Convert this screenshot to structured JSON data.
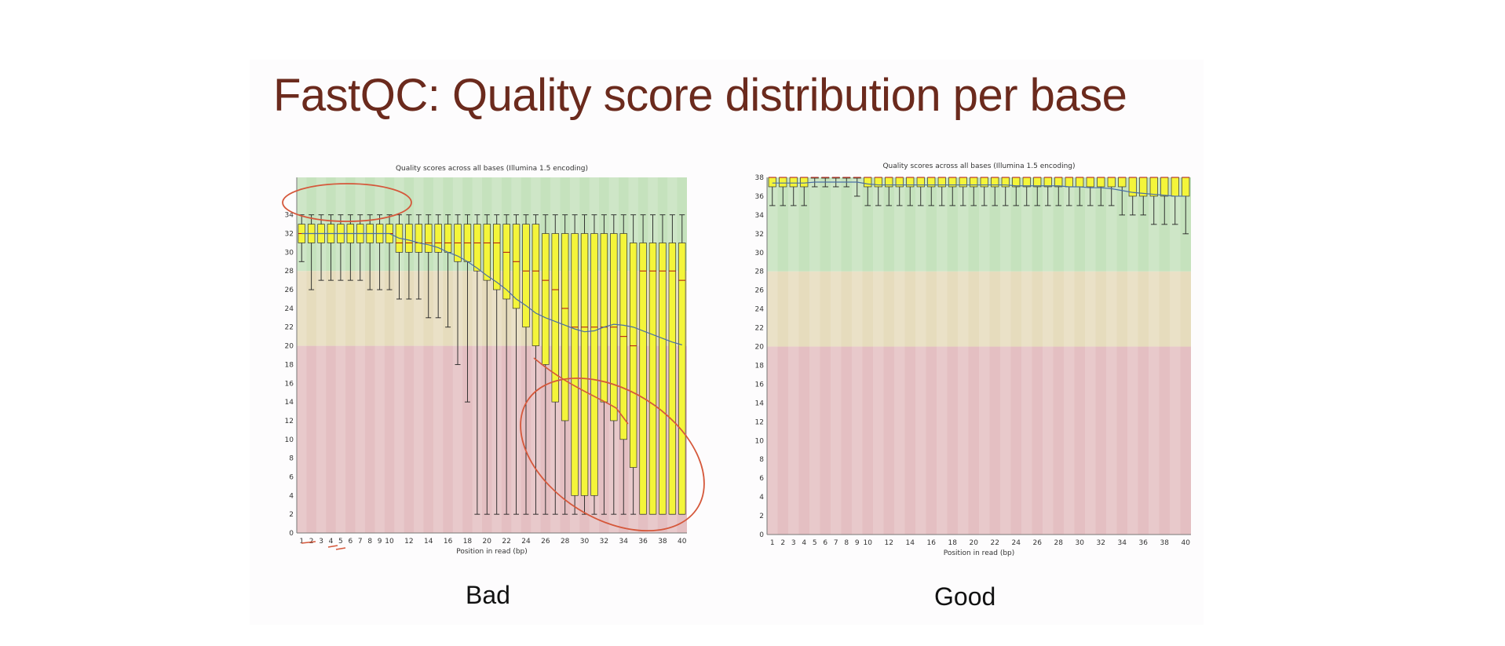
{
  "slide": {
    "title": "FastQC: Quality score distribution per base"
  },
  "chart_data": [
    {
      "type": "box",
      "caption": "Bad",
      "title": "Quality scores across all bases (Illumina 1.5 encoding)",
      "xlabel": "Position in read (bp)",
      "ylabel": "",
      "ylim": [
        0,
        38
      ],
      "yticks": [
        0,
        2,
        4,
        6,
        8,
        10,
        12,
        14,
        16,
        18,
        20,
        22,
        24,
        26,
        28,
        30,
        32,
        34
      ],
      "x": [
        1,
        2,
        3,
        4,
        5,
        6,
        7,
        8,
        9,
        10,
        12,
        14,
        16,
        18,
        20,
        22,
        24,
        26,
        28,
        30,
        32,
        34,
        36,
        38,
        40
      ],
      "x_slots": [
        1,
        2,
        3,
        4,
        5,
        6,
        7,
        8,
        9,
        10,
        11,
        12,
        13,
        14,
        15,
        16,
        17,
        18,
        19,
        20,
        21,
        22,
        23,
        24,
        25,
        26,
        27,
        28,
        29,
        30,
        31,
        32,
        33,
        34,
        35,
        36,
        37,
        38,
        39,
        40
      ],
      "box_q1": [
        31,
        31,
        31,
        31,
        31,
        31,
        31,
        31,
        31,
        31,
        30,
        30,
        30,
        30,
        30,
        30,
        29,
        29,
        28,
        27,
        26,
        25,
        24,
        22,
        20,
        18,
        14,
        12,
        4,
        4,
        4,
        14,
        12,
        10,
        7,
        2,
        2,
        2,
        2,
        2
      ],
      "box_q3": [
        33,
        33,
        33,
        33,
        33,
        33,
        33,
        33,
        33,
        33,
        33,
        33,
        33,
        33,
        33,
        33,
        33,
        33,
        33,
        33,
        33,
        33,
        33,
        33,
        33,
        32,
        32,
        32,
        32,
        32,
        32,
        32,
        32,
        32,
        31,
        31,
        31,
        31,
        31,
        31
      ],
      "whisker_lo": [
        29,
        26,
        27,
        27,
        27,
        27,
        27,
        26,
        26,
        26,
        25,
        25,
        25,
        23,
        23,
        22,
        18,
        14,
        2,
        2,
        2,
        2,
        2,
        2,
        2,
        2,
        2,
        2,
        2,
        2,
        2,
        2,
        2,
        2,
        2,
        2,
        2,
        2,
        2,
        2
      ],
      "whisker_hi": [
        34,
        34,
        34,
        34,
        34,
        34,
        34,
        34,
        34,
        34,
        34,
        34,
        34,
        34,
        34,
        34,
        34,
        34,
        34,
        34,
        34,
        34,
        34,
        34,
        34,
        34,
        34,
        34,
        34,
        34,
        34,
        34,
        34,
        34,
        34,
        34,
        34,
        34,
        34,
        34
      ],
      "median": [
        32,
        32,
        32,
        32,
        32,
        32,
        32,
        32,
        32,
        32,
        31,
        31,
        31,
        31,
        31,
        31,
        31,
        31,
        31,
        31,
        31,
        30,
        29,
        28,
        28,
        27,
        26,
        24,
        22,
        22,
        22,
        22,
        22,
        21,
        20,
        28,
        28,
        28,
        28,
        27
      ],
      "mean": [
        32,
        32,
        32,
        32,
        32,
        32,
        32,
        32,
        32,
        32,
        31.5,
        31.3,
        31,
        30.8,
        30.5,
        30,
        29.6,
        29,
        28.3,
        27.5,
        26.8,
        26,
        25,
        24.3,
        23.5,
        23,
        22.6,
        22.2,
        21.8,
        21.5,
        21.6,
        22,
        22.3,
        22.2,
        22,
        21.6,
        21.2,
        20.8,
        20.4,
        20.1
      ],
      "zones": [
        {
          "from": 0,
          "to": 20,
          "color": "#e4bfc2"
        },
        {
          "from": 20,
          "to": 28,
          "color": "#e6dcbd"
        },
        {
          "from": 28,
          "to": 38,
          "color": "#c5e2bd"
        }
      ],
      "colors": {
        "box": "#f4f53a",
        "mean_line": "#4a6fa5",
        "annotation": "#d5583b"
      }
    },
    {
      "type": "box",
      "caption": "Good",
      "title": "Quality scores across all bases (Illumina 1.5 encoding)",
      "xlabel": "Position in read (bp)",
      "ylabel": "",
      "ylim": [
        0,
        38
      ],
      "yticks": [
        0,
        2,
        4,
        6,
        8,
        10,
        12,
        14,
        16,
        18,
        20,
        22,
        24,
        26,
        28,
        30,
        32,
        34,
        36,
        38
      ],
      "x": [
        1,
        2,
        3,
        4,
        5,
        6,
        7,
        8,
        9,
        10,
        12,
        14,
        16,
        18,
        20,
        22,
        24,
        26,
        28,
        30,
        32,
        34,
        36,
        38,
        40
      ],
      "x_slots": [
        1,
        2,
        3,
        4,
        5,
        6,
        7,
        8,
        9,
        10,
        11,
        12,
        13,
        14,
        15,
        16,
        17,
        18,
        19,
        20,
        21,
        22,
        23,
        24,
        25,
        26,
        27,
        28,
        29,
        30,
        31,
        32,
        33,
        34,
        35,
        36,
        37,
        38,
        39,
        40
      ],
      "box_q1": [
        37,
        37,
        37,
        37,
        38,
        38,
        38,
        38,
        38,
        37,
        37,
        37,
        37,
        37,
        37,
        37,
        37,
        37,
        37,
        37,
        37,
        37,
        37,
        37,
        37,
        37,
        37,
        37,
        37,
        37,
        37,
        37,
        37,
        37,
        36,
        36,
        36,
        36,
        36,
        36
      ],
      "box_q3": [
        38,
        38,
        38,
        38,
        38,
        38,
        38,
        38,
        38,
        38,
        38,
        38,
        38,
        38,
        38,
        38,
        38,
        38,
        38,
        38,
        38,
        38,
        38,
        38,
        38,
        38,
        38,
        38,
        38,
        38,
        38,
        38,
        38,
        38,
        38,
        38,
        38,
        38,
        38,
        38
      ],
      "whisker_lo": [
        35,
        35,
        35,
        35,
        37,
        37,
        37,
        37,
        36,
        35,
        35,
        35,
        35,
        35,
        35,
        35,
        35,
        35,
        35,
        35,
        35,
        35,
        35,
        35,
        35,
        35,
        35,
        35,
        35,
        35,
        35,
        35,
        35,
        34,
        34,
        34,
        33,
        33,
        33,
        32
      ],
      "whisker_hi": [
        38,
        38,
        38,
        38,
        38,
        38,
        38,
        38,
        38,
        38,
        38,
        38,
        38,
        38,
        38,
        38,
        38,
        38,
        38,
        38,
        38,
        38,
        38,
        38,
        38,
        38,
        38,
        38,
        38,
        38,
        38,
        38,
        38,
        38,
        38,
        38,
        38,
        38,
        38,
        38
      ],
      "median": [
        38,
        38,
        38,
        38,
        38,
        38,
        38,
        38,
        38,
        38,
        38,
        38,
        38,
        38,
        38,
        38,
        38,
        38,
        38,
        38,
        38,
        38,
        38,
        38,
        38,
        38,
        38,
        38,
        38,
        38,
        38,
        38,
        38,
        38,
        38,
        38,
        38,
        38,
        38,
        38
      ],
      "mean": [
        37.4,
        37.4,
        37.4,
        37.4,
        37.5,
        37.5,
        37.5,
        37.5,
        37.5,
        37.3,
        37.2,
        37.2,
        37.2,
        37.2,
        37.2,
        37.2,
        37.2,
        37.2,
        37.2,
        37.2,
        37.2,
        37.2,
        37.2,
        37.1,
        37.1,
        37.1,
        37.1,
        37.1,
        37.0,
        37.0,
        36.9,
        36.9,
        36.8,
        36.6,
        36.4,
        36.3,
        36.2,
        36.1,
        36.0,
        36.0
      ],
      "zones": [
        {
          "from": 0,
          "to": 20,
          "color": "#e4bfc2"
        },
        {
          "from": 20,
          "to": 28,
          "color": "#e6dcbd"
        },
        {
          "from": 28,
          "to": 38,
          "color": "#c5e2bd"
        }
      ],
      "colors": {
        "box": "#f4f53a",
        "mean_line": "#4a6fa5"
      }
    }
  ]
}
